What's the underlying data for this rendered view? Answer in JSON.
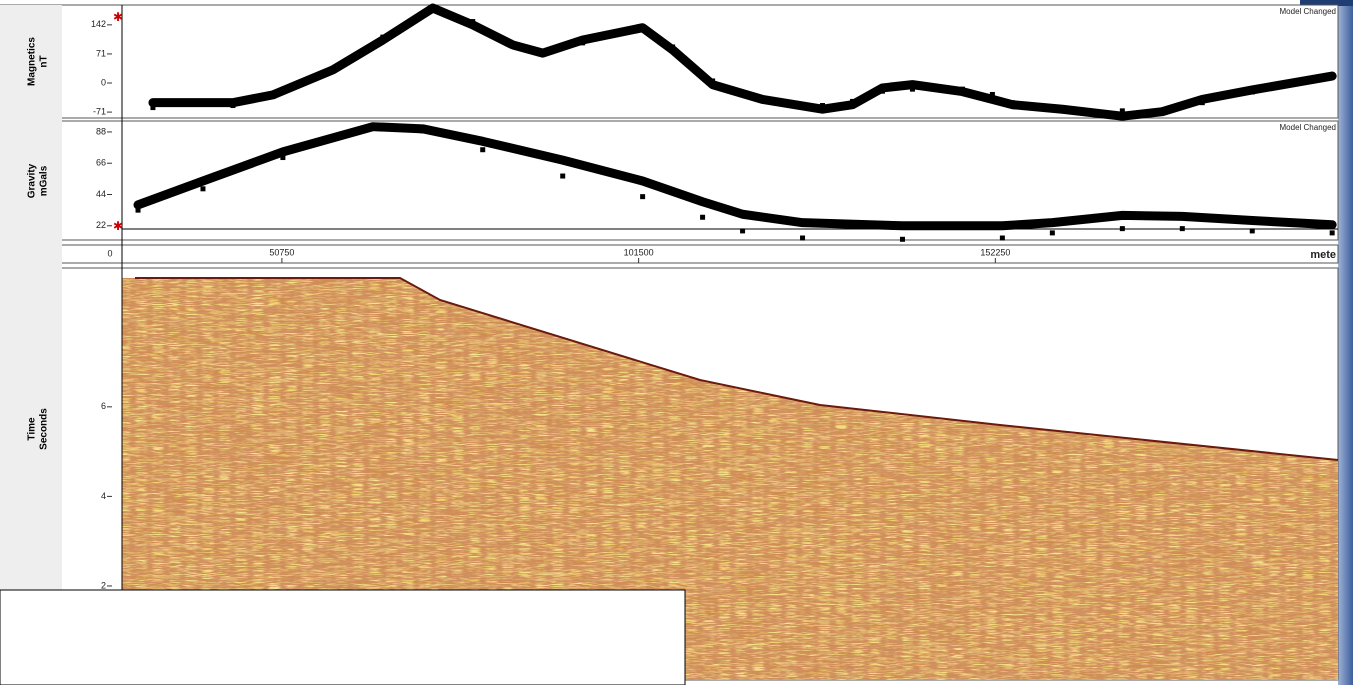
{
  "chart_data": [
    {
      "type": "line",
      "ylabel": [
        "Magnetics",
        "nT"
      ],
      "annotation": "Model Changed",
      "xlim": [
        28000,
        201000
      ],
      "ylim": [
        -83,
        188
      ],
      "yticks": [
        142,
        71,
        0,
        -71
      ],
      "x": [
        32400,
        43780,
        49470,
        58000,
        65110,
        72220,
        77900,
        83590,
        87860,
        93540,
        102070,
        106340,
        112030,
        119130,
        127660,
        131930,
        136190,
        140460,
        147570,
        151830,
        154680,
        161790,
        170320,
        176000,
        181690,
        188800,
        200170
      ],
      "series": [
        {
          "style": "line",
          "color": "#000000",
          "values": [
            -48,
            -48,
            -29,
            32,
            105,
            183,
            142,
            93,
            73,
            105,
            135,
            81,
            -4,
            -40,
            -64,
            -53,
            -12,
            -4,
            -21,
            -40,
            -53,
            -64,
            -81,
            -70,
            -40,
            -17,
            17
          ]
        },
        {
          "style": "square",
          "color": "#000000",
          "values": [
            -60,
            -55,
            -33,
            35,
            112,
            180,
            150,
            95,
            78,
            98,
            130,
            88,
            5,
            -38,
            -55,
            -45,
            -20,
            -15,
            -15,
            -28,
            -48,
            -60,
            -68,
            -72,
            -48,
            -22,
            15
          ]
        }
      ]
    },
    {
      "type": "line",
      "ylabel": [
        "Gravity",
        "mGals"
      ],
      "annotation": "Model Changed",
      "xlim": [
        28000,
        201000
      ],
      "ylim": [
        12,
        95
      ],
      "yticks": [
        88,
        66,
        44,
        22
      ],
      "xticks": [
        50750,
        101500,
        152250
      ],
      "xstart": "0",
      "xlabel": "mete",
      "x": [
        30280,
        39520,
        50890,
        63690,
        70800,
        79320,
        90700,
        102070,
        110600,
        116290,
        124820,
        139040,
        153250,
        160360,
        170320,
        178850,
        188800,
        200170
      ],
      "series": [
        {
          "style": "line",
          "color": "#000000",
          "values": [
            36.7,
            53.5,
            74,
            91.7,
            90.2,
            81.4,
            68.2,
            53.5,
            38.9,
            30.1,
            24.2,
            22,
            22,
            24.2,
            29.3,
            28.6,
            25.7,
            22.7
          ]
        },
        {
          "style": "square",
          "color": "#000000",
          "values": [
            33,
            48,
            70,
            91.7,
            88.7,
            75.5,
            57,
            42.5,
            28,
            18.4,
            13.4,
            12.5,
            13.4,
            17,
            20,
            20,
            18.4,
            17
          ]
        }
      ]
    },
    {
      "type": "seismic",
      "ylabel": [
        "Time",
        "Seconds"
      ],
      "ylim": [
        -0.1,
        9.1
      ],
      "yticks": [
        2,
        4,
        6
      ]
    }
  ]
}
